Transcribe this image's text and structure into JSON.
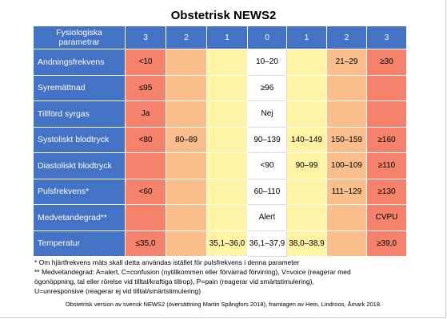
{
  "title": "Obstetrisk NEWS2",
  "header": {
    "param_line1": "Fysiologiska",
    "param_line2": "parametrar",
    "scores": [
      "3",
      "2",
      "1",
      "0",
      "1",
      "2",
      "3"
    ]
  },
  "colors": {
    "header_blue": "#4472c4",
    "score_3": "#f4826c",
    "score_2": "#fbbf8e",
    "score_1": "#fff3a6",
    "score_0": "#ffffff"
  },
  "rows": [
    {
      "label": "Andningsfrekvens",
      "cells": [
        "<10",
        "",
        "",
        "10–20",
        "",
        "21–29",
        "≥30"
      ]
    },
    {
      "label": "Syremättnad",
      "cells": [
        "≤95",
        "",
        "",
        "≥96",
        "",
        "",
        ""
      ]
    },
    {
      "label": "Tillförd syrgas",
      "cells": [
        "Ja",
        "",
        "",
        "Nej",
        "",
        "",
        ""
      ]
    },
    {
      "label": "Systoliskt blodtryck",
      "cells": [
        "<80",
        "80–89",
        "",
        "90–139",
        "140–149",
        "150–159",
        "≥160"
      ]
    },
    {
      "label": "Diastoliskt blodtryck",
      "cells": [
        "",
        "",
        "",
        "<90",
        "90–99",
        "100–109",
        "≥110"
      ]
    },
    {
      "label": "Pulsfrekvens*",
      "cells": [
        "<60",
        "",
        "",
        "60–110",
        "",
        "111–129",
        "≥130"
      ]
    },
    {
      "label": "Medvetandegrad**",
      "cells": [
        "",
        "",
        "",
        "Alert",
        "",
        "",
        "CVPU"
      ]
    },
    {
      "label": "Temperatur",
      "cells": [
        "≤35,0",
        "",
        "35,1–36,0",
        "36,1–37,9",
        "38,0–38,9",
        "",
        "≥39,0"
      ]
    }
  ],
  "notes": {
    "note1": "* Om hjärtfrekvens mäts skall detta användas istället för pulsfrekvens i denna parameter",
    "note2_line1": "** Medvetandegrad: A=alert, C=confusion (nytillkommen eller förvärrad förvirring), V=voice (reagerar med",
    "note2_line2": "ögonöppning, tal eller rörelse vid tilltal/kraftiga tillrop), P=pain (reagerar vid smärtstimulering),",
    "note2_line3": "U=unresponsive (reagerar ej vid tilltal/smärtstimulering)"
  },
  "source": "Obstetrisk version av svensk NEWS2 (översättning Martin Spångfors 2018), framtagen av Hein, Lindroos, Åmark 2018."
}
